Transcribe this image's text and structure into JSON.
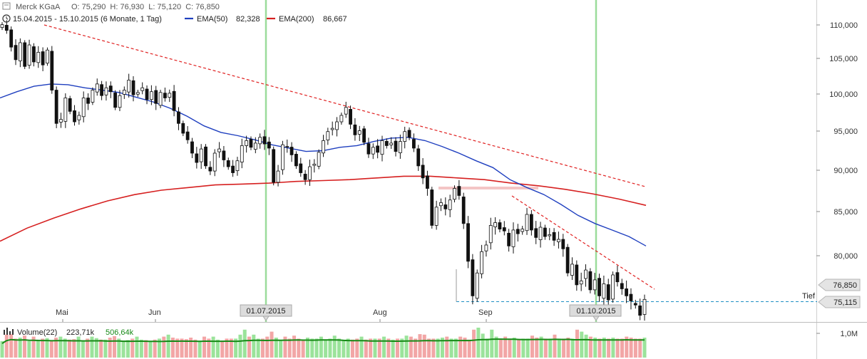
{
  "header": {
    "title": "Merck KGaA",
    "ohlc": "O: 75,290  H: 76,930  L: 75,120  C: 76,850",
    "range": "15.04.2015 - 15.10.2015 (6 Monate, 1 Tag)",
    "ema50_label": "EMA(50)",
    "ema50_value": "82,328",
    "ema200_label": "EMA(200)",
    "ema200_value": "86,667"
  },
  "badges": {
    "last": "76,850",
    "low": "75,115",
    "low_label": "Tief",
    "vline1": "01.07.2015",
    "vline2": "01.10.2015"
  },
  "volume": {
    "label": "Volume(22)",
    "value1": "223,71k",
    "value2": "506,64k",
    "axis_label": "1,0M"
  },
  "colors": {
    "ema50": "#1f3fbf",
    "ema200": "#d62020",
    "trend": "#e02020",
    "vline": "#9bdc9b",
    "support": "#1e8fc4",
    "vol_up": "#9be39b",
    "vol_down": "#f2a6a6",
    "vol_avg": "#178a17"
  },
  "chart_data": {
    "type": "candlestick",
    "title": "Merck KGaA",
    "x_start": "2015-04-15",
    "x_end": "2015-10-15",
    "x_tick_labels": [
      "Mai",
      "Jun",
      "Aug",
      "Sep"
    ],
    "y_tick_labels": [
      "110,000",
      "105,000",
      "100,000",
      "95,000",
      "90,000",
      "85,000",
      "80,000"
    ],
    "ylim": [
      73.5,
      112
    ],
    "y_scale": "log",
    "grid": false,
    "legend": "top-left",
    "closes": [
      109.3,
      108.5,
      106.2,
      104.5,
      106.8,
      103.6,
      106.5,
      104.2,
      105.5,
      103.8,
      105.8,
      100.5,
      96.3,
      96.8,
      99.5,
      97.8,
      96.5,
      97.3,
      99.5,
      98.8,
      100.5,
      101.3,
      99.8,
      100.8,
      100.3,
      98.3,
      99.8,
      100.5,
      101.8,
      99.9,
      100.2,
      100.8,
      99.3,
      100.3,
      98.8,
      100.2,
      99.5,
      100.1,
      97.9,
      96.3,
      95.1,
      94.3,
      92.7,
      91.6,
      93.2,
      91.2,
      90.6,
      92.7,
      93.2,
      91.9,
      91.1,
      90.4,
      91.8,
      93.6,
      94.2,
      93.4,
      93.9,
      94.6,
      93.8,
      93.3,
      89.3,
      90.6,
      93.7,
      93.5,
      92.5,
      91.2,
      90.4,
      89.6,
      91.1,
      91.4,
      92.8,
      94.2,
      95.3,
      95.7,
      96.5,
      97.3,
      98.3,
      96.2,
      94.9,
      95.4,
      94.0,
      92.6,
      93.4,
      92.8,
      94.2,
      93.6,
      93.9,
      92.9,
      94.1,
      95.3,
      94.6,
      93.3,
      91.2,
      89.8,
      88.6,
      84.5,
      86.5,
      87.0,
      86.3,
      87.3,
      88.6,
      87.8,
      84.7,
      80.7,
      77.2,
      79.5,
      81.7,
      82.4,
      84.5,
      84.8,
      84.1,
      83.9,
      82.3,
      84.0,
      83.6,
      84.1,
      85.7,
      84.0,
      83.2,
      84.3,
      83.3,
      83.5,
      82.9,
      83.0,
      82.0,
      79.5,
      80.4,
      78.3,
      78.7,
      79.8,
      77.8,
      78.8,
      77.2,
      78.4,
      76.8,
      79.3,
      78.6,
      77.9,
      77.2,
      76.7,
      76.3,
      75.3,
      76.85
    ],
    "ema50": [
      99.5,
      100.3,
      101.0,
      101.3,
      101.2,
      100.8,
      100.5,
      100.2,
      99.6,
      99.0,
      98.2,
      97.2,
      96.0,
      95.2,
      94.8,
      94.3,
      93.7,
      93.3,
      92.9,
      93.0,
      93.4,
      93.6,
      94.1,
      94.5,
      94.6,
      94.2,
      93.5,
      92.7,
      91.8,
      91.0,
      89.6,
      88.7,
      87.9,
      86.8,
      85.6,
      84.7,
      84.0,
      83.3,
      82.3
    ],
    "ema200": [
      82.8,
      84.2,
      85.3,
      86.3,
      87.2,
      87.9,
      88.4,
      88.7,
      89.0,
      89.1,
      89.2,
      89.4,
      89.5,
      89.6,
      89.8,
      90.0,
      90.0,
      89.8,
      89.6,
      89.2,
      88.9,
      88.5,
      88.0,
      87.4,
      86.7
    ],
    "volume": [
      330,
      460,
      470,
      380,
      400,
      440,
      330,
      420,
      360,
      380,
      390,
      350,
      400,
      420,
      380,
      360,
      370,
      420,
      340,
      380,
      420,
      390,
      360,
      360,
      400,
      430,
      380,
      340,
      350,
      380,
      420,
      360,
      350,
      330,
      360,
      380,
      420,
      460,
      400,
      380,
      380,
      370,
      400,
      360,
      340,
      420,
      380,
      420,
      360,
      340,
      380,
      380,
      380,
      460,
      560,
      420,
      460,
      380,
      380,
      420,
      520,
      400,
      350,
      420,
      380,
      440,
      380,
      340,
      400,
      380,
      380,
      420,
      360,
      380,
      440,
      380,
      360,
      380,
      360,
      380,
      420,
      360,
      380,
      380,
      380,
      420,
      380,
      360,
      380,
      380,
      440,
      420,
      380,
      470,
      460,
      380,
      380,
      380,
      400,
      420,
      380,
      380,
      420,
      400,
      360,
      560,
      600,
      480,
      380,
      560,
      420,
      380,
      420,
      380,
      400,
      360,
      380,
      380,
      440,
      400,
      420,
      380,
      380,
      460,
      380,
      380,
      400,
      380,
      560,
      520,
      460,
      420,
      400,
      380,
      400,
      380,
      400,
      380,
      380,
      420,
      400,
      380,
      380,
      400
    ]
  }
}
